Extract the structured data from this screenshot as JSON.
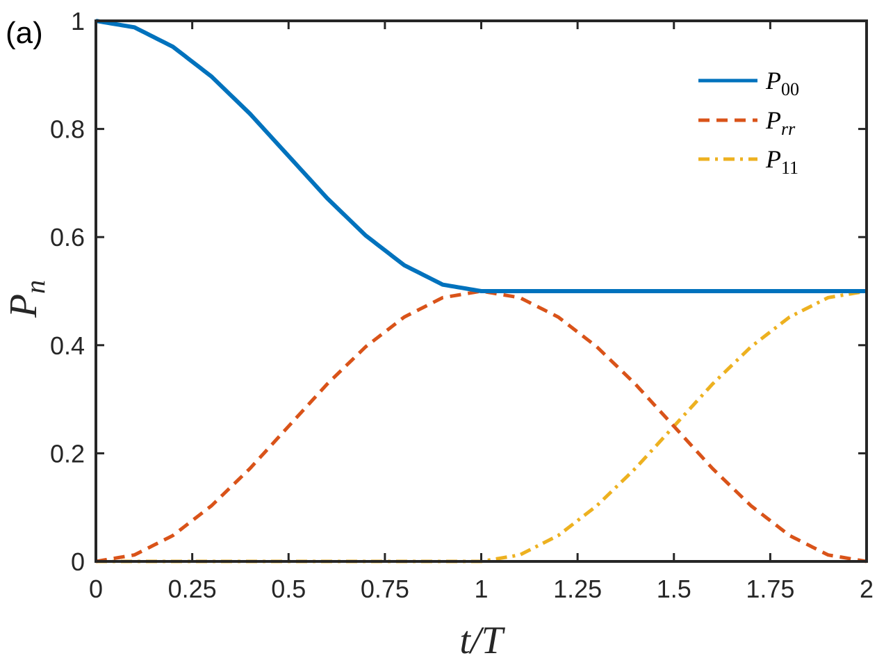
{
  "panel_label": "(a)",
  "chart_data": {
    "type": "line",
    "xlabel": "t/T",
    "ylabel": "P",
    "ylabel_sub": "n",
    "xlim": [
      0,
      2
    ],
    "ylim": [
      0,
      1
    ],
    "xticks": [
      0,
      0.25,
      0.5,
      0.75,
      1,
      1.25,
      1.5,
      1.75,
      2
    ],
    "xtick_labels": [
      "0",
      "0.25",
      "0.5",
      "0.75",
      "1",
      "1.25",
      "1.5",
      "1.75",
      "2"
    ],
    "yticks": [
      0,
      0.2,
      0.4,
      0.6,
      0.8,
      1
    ],
    "ytick_labels": [
      "0",
      "0.2",
      "0.4",
      "0.6",
      "0.8",
      "1"
    ],
    "grid": false,
    "legend_position": "top-right",
    "series": [
      {
        "name": "P",
        "name_sub": "00",
        "color": "#0072BD",
        "style": "solid",
        "x": [
          0,
          0.1,
          0.2,
          0.3,
          0.4,
          0.5,
          0.6,
          0.7,
          0.8,
          0.9,
          1.0,
          1.1,
          1.2,
          1.3,
          1.4,
          1.5,
          1.6,
          1.7,
          1.8,
          1.9,
          2.0
        ],
        "y": [
          1.0,
          0.988,
          0.952,
          0.897,
          0.828,
          0.75,
          0.672,
          0.603,
          0.548,
          0.512,
          0.5,
          0.5,
          0.5,
          0.5,
          0.5,
          0.5,
          0.5,
          0.5,
          0.5,
          0.5,
          0.5
        ]
      },
      {
        "name": "P",
        "name_sub": "rr",
        "color": "#D95319",
        "style": "dashed",
        "x": [
          0,
          0.1,
          0.2,
          0.3,
          0.4,
          0.5,
          0.6,
          0.7,
          0.8,
          0.9,
          1.0,
          1.1,
          1.2,
          1.3,
          1.4,
          1.5,
          1.6,
          1.7,
          1.8,
          1.9,
          2.0
        ],
        "y": [
          0.0,
          0.012,
          0.048,
          0.103,
          0.172,
          0.25,
          0.328,
          0.397,
          0.452,
          0.488,
          0.5,
          0.488,
          0.452,
          0.397,
          0.328,
          0.25,
          0.172,
          0.103,
          0.048,
          0.012,
          0.0
        ]
      },
      {
        "name": "P",
        "name_sub": "11",
        "color": "#EDB120",
        "style": "dashdot",
        "x": [
          0,
          0.1,
          0.2,
          0.3,
          0.4,
          0.5,
          0.6,
          0.7,
          0.8,
          0.9,
          1.0,
          1.1,
          1.2,
          1.3,
          1.4,
          1.5,
          1.6,
          1.7,
          1.8,
          1.9,
          2.0
        ],
        "y": [
          0.0,
          0.0,
          0.0,
          0.0,
          0.0,
          0.0,
          0.0,
          0.0,
          0.0,
          0.0,
          0.0,
          0.012,
          0.048,
          0.103,
          0.172,
          0.25,
          0.328,
          0.397,
          0.452,
          0.488,
          0.5
        ]
      }
    ]
  }
}
